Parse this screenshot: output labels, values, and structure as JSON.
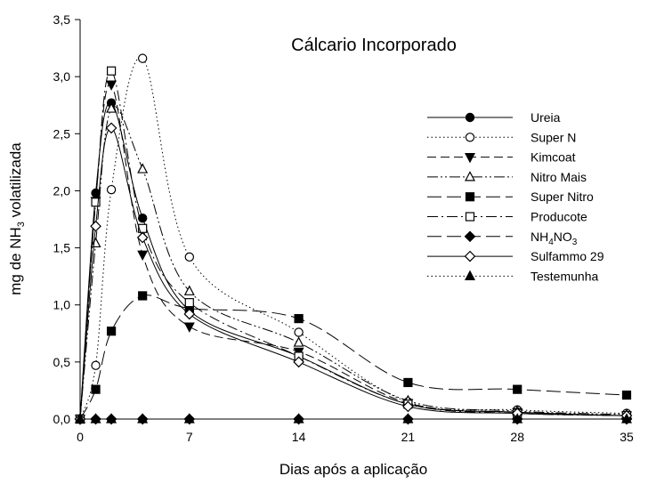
{
  "chart_data": {
    "type": "line",
    "title": "Cálcario Incorporado",
    "xlabel": "Dias após a aplicação",
    "ylabel_parts": {
      "pre": "mg de NH",
      "sub": "3",
      "post": " volatilizada"
    },
    "xlim": [
      0,
      35
    ],
    "ylim": [
      0,
      3.5
    ],
    "x_ticks": [
      0,
      7,
      14,
      21,
      28,
      35
    ],
    "x_tick_labels": [
      "0",
      "7",
      "14",
      "21",
      "28",
      "35"
    ],
    "y_ticks": [
      0,
      0.5,
      1.0,
      1.5,
      2.0,
      2.5,
      3.0,
      3.5
    ],
    "y_tick_labels": [
      "0,0",
      "0,5",
      "1,0",
      "1,5",
      "2,0",
      "2,5",
      "3,0",
      "3,5"
    ],
    "grid": false,
    "legend_position": "right",
    "x": [
      0,
      1,
      2,
      4,
      7,
      14,
      21,
      28,
      35
    ],
    "series": [
      {
        "name": "Ureia",
        "name_parts": [
          "Ureia"
        ],
        "marker": "circle",
        "filled": true,
        "dash": "none",
        "values": [
          0,
          1.98,
          2.77,
          1.76,
          0.95,
          0.55,
          0.13,
          0.06,
          0.03
        ]
      },
      {
        "name": "Super N",
        "name_parts": [
          "Super N"
        ],
        "marker": "circle",
        "filled": false,
        "dash": "dot",
        "values": [
          0,
          0.47,
          2.01,
          3.16,
          1.42,
          0.76,
          0.15,
          0.08,
          0.05
        ]
      },
      {
        "name": "Kimcoat",
        "name_parts": [
          "Kimcoat"
        ],
        "marker": "triangle-down",
        "filled": true,
        "dash": "dash",
        "values": [
          0,
          1.91,
          2.93,
          1.44,
          0.81,
          0.59,
          0.14,
          0.06,
          0.03
        ]
      },
      {
        "name": "Nitro Mais",
        "name_parts": [
          "Nitro Mais"
        ],
        "marker": "triangle-up",
        "filled": false,
        "dash": "dashdotdot",
        "values": [
          0,
          1.54,
          2.72,
          2.19,
          1.12,
          0.67,
          0.16,
          0.07,
          0.04
        ]
      },
      {
        "name": "Super Nitro",
        "name_parts": [
          "Super Nitro"
        ],
        "marker": "square",
        "filled": true,
        "dash": "longdash",
        "values": [
          0,
          0.26,
          0.77,
          1.08,
          0.97,
          0.88,
          0.32,
          0.26,
          0.21
        ]
      },
      {
        "name": "Producote",
        "name_parts": [
          "Producote"
        ],
        "marker": "square",
        "filled": false,
        "dash": "dashdot",
        "values": [
          0,
          1.9,
          3.05,
          1.67,
          1.02,
          0.55,
          0.13,
          0.05,
          0.03
        ]
      },
      {
        "name": "NH4NO3",
        "name_parts": [
          "NH",
          "4",
          "NO",
          "3"
        ],
        "marker": "diamond",
        "filled": true,
        "dash": "longdash",
        "values": [
          0,
          0,
          0,
          0,
          0,
          0,
          0,
          0,
          0
        ]
      },
      {
        "name": "Sulfammo 29",
        "name_parts": [
          "Sulfammo 29"
        ],
        "marker": "diamond",
        "filled": false,
        "dash": "none",
        "values": [
          0,
          1.69,
          2.55,
          1.59,
          0.92,
          0.5,
          0.11,
          0.05,
          0.03
        ]
      },
      {
        "name": "Testemunha",
        "name_parts": [
          "Testemunha"
        ],
        "marker": "triangle-up",
        "filled": true,
        "dash": "dot",
        "values": [
          0,
          0,
          0,
          0,
          0,
          0,
          0,
          0,
          0
        ]
      }
    ]
  }
}
